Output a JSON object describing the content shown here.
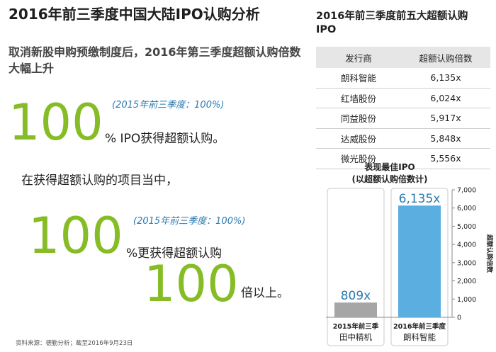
{
  "headline": {
    "title": "2016年前三季度中国大陆IPO认购分析",
    "subtitle": "取消新股申购预缴制度后，2016年第三季度超额认购倍数大幅上升"
  },
  "stats": [
    {
      "value": "100",
      "note": "(2015年前三季度：100%)",
      "text": "% IPO获得超额认购。"
    },
    {
      "intro": "在获得超额认购的项目当中，",
      "value": "100",
      "note": "(2015年前三季度：100%)",
      "text": "%更获得超额认购"
    },
    {
      "value": "100",
      "text": "倍以上。"
    }
  ],
  "ranking_table": {
    "title": "2016年前三季度前五大超额认购IPO",
    "headers": [
      "发行商",
      "超额认购倍数"
    ],
    "rows": [
      [
        "朗科智能",
        "6,135x"
      ],
      [
        "红墙股份",
        "6,024x"
      ],
      [
        "同益股份",
        "5,917x"
      ],
      [
        "达威股份",
        "5,848x"
      ],
      [
        "微光股份",
        "5,556x"
      ]
    ]
  },
  "chart_data": {
    "type": "bar",
    "title": "表现最佳IPO\n(以超额认购倍数计)",
    "categories": [
      {
        "period": "2015年前三季",
        "company": "田中精机"
      },
      {
        "period": "2016年前三季度",
        "company": "朗科智能"
      }
    ],
    "values": [
      809,
      6135
    ],
    "value_labels": [
      "809x",
      "6,135x"
    ],
    "bar_colors": [
      "#a6a6a6",
      "#5aaee0"
    ],
    "ylabel": "超额认购倍数",
    "ylim": [
      0,
      7000
    ],
    "yticks": [
      0,
      1000,
      2000,
      3000,
      4000,
      5000,
      6000,
      7000
    ],
    "ytick_labels": [
      "0",
      "1,000",
      "2,000",
      "3,000",
      "4,000",
      "5,000",
      "6,000",
      "7,000"
    ],
    "grid": false
  },
  "source": "资料来源：德勤分析；截至2016年9月23日",
  "colors": {
    "accent_green": "#86bc25",
    "note_blue": "#2a7ab0",
    "bar_gray": "#a6a6a6",
    "bar_blue": "#5aaee0"
  }
}
